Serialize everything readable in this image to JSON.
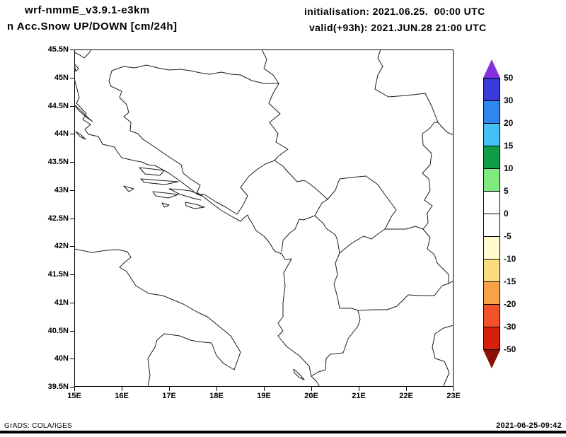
{
  "header": {
    "model_title": "wrf-nmmE_v3.9.1-e3km",
    "product_title": "n Acc.Snow UP/DOWN [cm/24h]",
    "init_line": "initialisation: 2021.06.25.  00:00 UTC",
    "valid_line": "valid(+93h): 2021.JUN.28 21:00 UTC"
  },
  "footer": {
    "credit": "GrADS: COLA/IGES",
    "timestamp": "2021-06-25-09:42"
  },
  "chart_data": {
    "type": "heatmap",
    "title": "wrf-nmmE_v3.9.1-e3km  Acc.Snow UP/DOWN [cm/24h]",
    "region": "Adriatic / Balkans map, country borders and coastlines only",
    "x_axis": {
      "label": "longitude",
      "range": [
        15,
        23
      ],
      "ticks": [
        "15E",
        "16E",
        "17E",
        "18E",
        "19E",
        "20E",
        "21E",
        "22E",
        "23E"
      ]
    },
    "y_axis": {
      "label": "latitude",
      "range": [
        39.5,
        45.5
      ],
      "ticks": [
        "45.5N",
        "45N",
        "44.5N",
        "44N",
        "43.5N",
        "43N",
        "42.5N",
        "42N",
        "41.5N",
        "41N",
        "40.5N",
        "40N",
        "39.5N"
      ]
    },
    "grid": false,
    "field_values": "no shaded snow field visible; whole domain unshaded (~0 cm/24h)",
    "colorbar": {
      "levels": [
        "50",
        "30",
        "20",
        "15",
        "10",
        "5",
        "0",
        "-5",
        "-10",
        "-15",
        "-20",
        "-30",
        "-50"
      ],
      "segment_colors_top_to_bottom": [
        "#3a3ad9",
        "#2e86f0",
        "#42c1f2",
        "#0e9c44",
        "#7fe87f",
        "#ffffff",
        "#ffffff",
        "#fffbd1",
        "#fbdc7e",
        "#f8a246",
        "#f2512b",
        "#d6200e"
      ],
      "arrow_top_color": "#8430e0",
      "arrow_bottom_color": "#8c0f05"
    }
  }
}
